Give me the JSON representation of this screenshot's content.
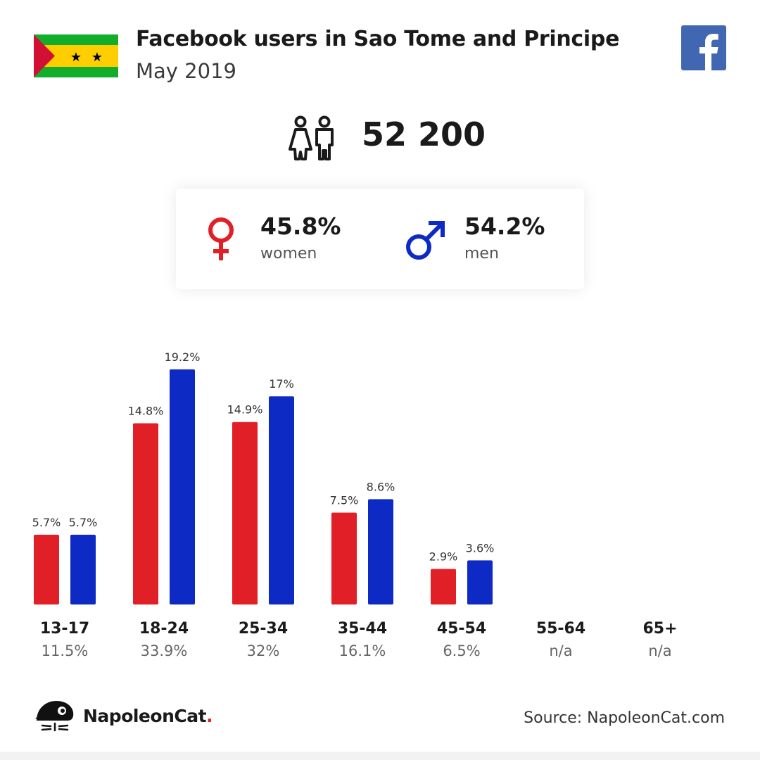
{
  "header": {
    "title": "Facebook users in Sao Tome and Principe",
    "subtitle": "May 2019",
    "flag_icon": "sao-tome-and-principe-flag",
    "brand_icon": "facebook-logo-icon"
  },
  "total": {
    "icon": "users-icon",
    "value": "52 200"
  },
  "gender": {
    "women": {
      "icon": "female-icon",
      "percent": "45.8%",
      "label": "women",
      "color": "#e01f26"
    },
    "men": {
      "icon": "male-icon",
      "percent": "54.2%",
      "label": "men",
      "color": "#0e2ac4"
    }
  },
  "colors": {
    "women": "#e01f26",
    "men": "#0e2ac4",
    "fb_blue": "#4267b2",
    "flag_green": "#12ad2b",
    "flag_yellow": "#ffce00",
    "flag_red": "#d21034"
  },
  "chart_data": {
    "type": "bar",
    "categories": [
      "13-17",
      "18-24",
      "25-34",
      "35-44",
      "45-54",
      "55-64",
      "65+"
    ],
    "category_totals": [
      "11.5%",
      "33.9%",
      "32%",
      "16.1%",
      "6.5%",
      "n/a",
      "n/a"
    ],
    "series": [
      {
        "key": "women",
        "values": [
          5.7,
          14.8,
          14.9,
          7.5,
          2.9,
          null,
          null
        ],
        "labels": [
          "5.7%",
          "14.8%",
          "14.9%",
          "7.5%",
          "2.9%",
          "",
          ""
        ]
      },
      {
        "key": "men",
        "values": [
          5.7,
          19.2,
          17,
          8.6,
          3.6,
          null,
          null
        ],
        "labels": [
          "5.7%",
          "19.2%",
          "17%",
          "8.6%",
          "3.6%",
          "",
          ""
        ]
      }
    ],
    "ylim": [
      0,
      20
    ],
    "grid": false,
    "legend": "none"
  },
  "footer": {
    "logo_icon": "napoleoncat-logo-icon",
    "logo_text": "NapoleonCat",
    "logo_dot": ".",
    "source": "Source: NapoleonCat.com"
  }
}
